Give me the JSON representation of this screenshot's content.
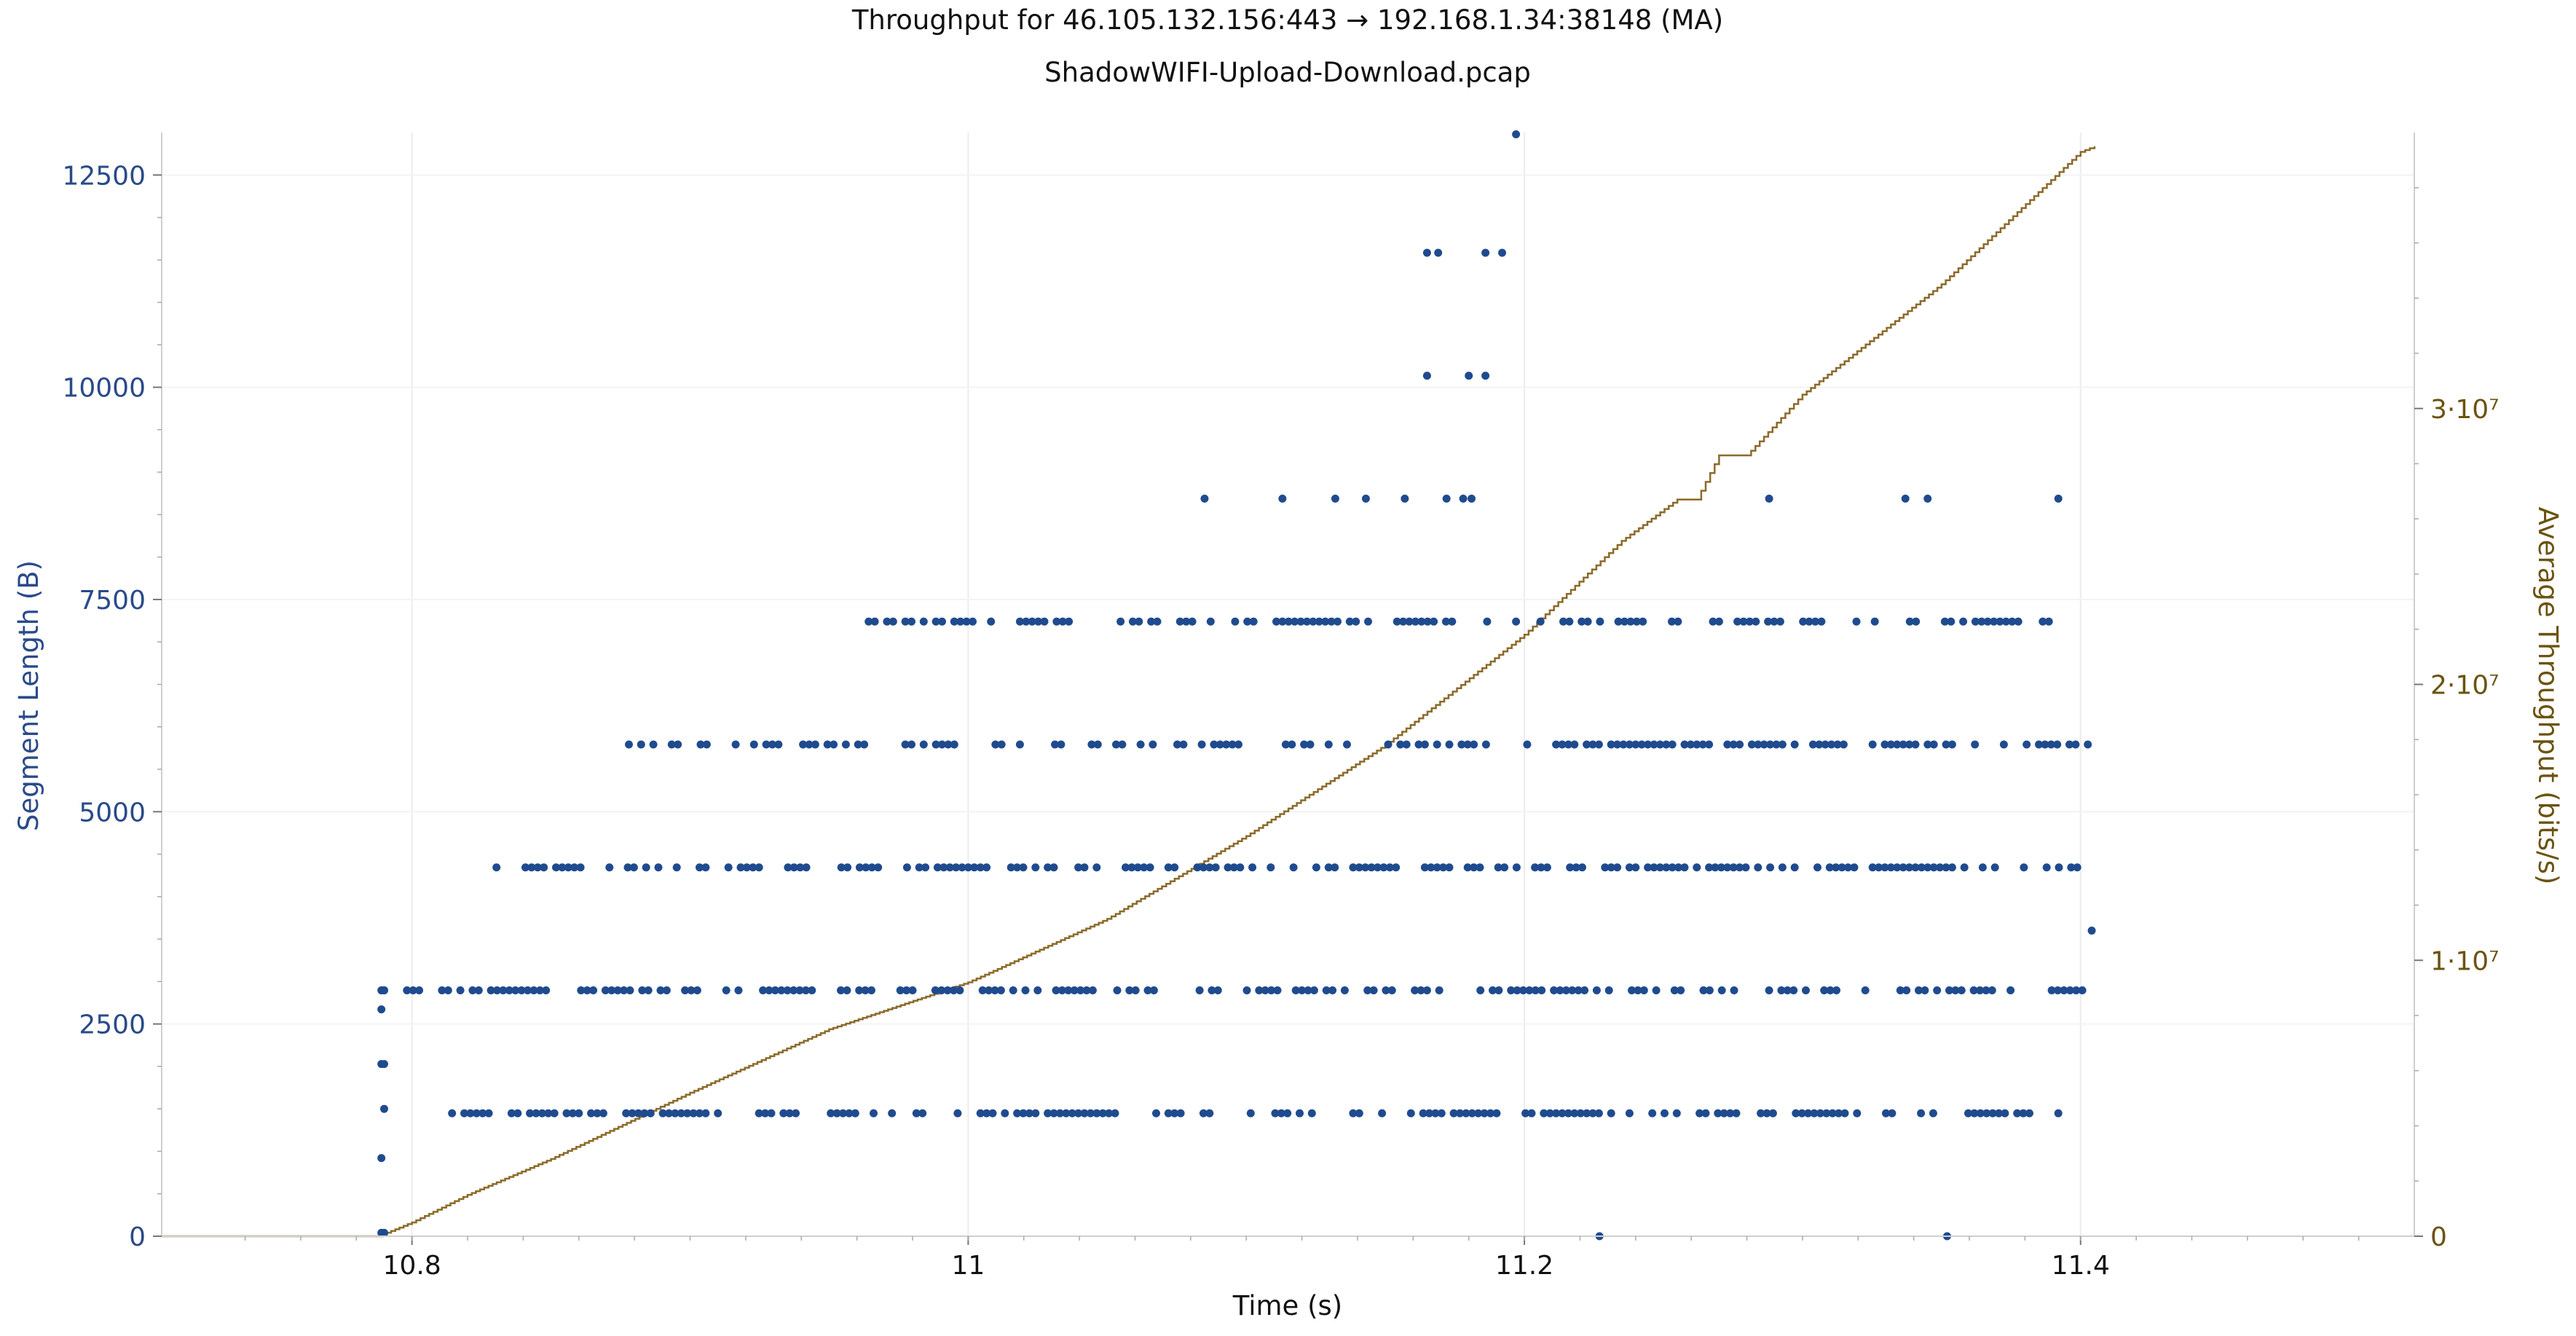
{
  "chart_data": {
    "type": "scatter",
    "title": "Throughput for 46.105.132.156:443 → 192.168.1.34:38148 (MA)",
    "subtitle": "ShadowWIFI-Upload-Download.pcap",
    "xlabel": "Time (s)",
    "ylabel_left": "Segment Length (B)",
    "ylabel_right": "Average Throughput (bits/s)",
    "xlim": [
      10.71,
      11.52
    ],
    "ylim_left": [
      0,
      13000
    ],
    "ylim_right": [
      0,
      40000000
    ],
    "x_ticks": [
      10.8,
      11,
      11.2,
      11.4
    ],
    "x_tick_labels": [
      "10.8",
      "11",
      "11.2",
      "11.4"
    ],
    "y_left_ticks": [
      0,
      2500,
      5000,
      7500,
      10000,
      12500
    ],
    "y_left_tick_labels": [
      "0",
      "2500",
      "5000",
      "7500",
      "10000",
      "12500"
    ],
    "y_right_ticks": [
      0,
      10000000,
      20000000,
      30000000
    ],
    "y_right_tick_labels": [
      "0",
      "1·10⁷",
      "2·10⁷",
      "3·10⁷"
    ],
    "colors": {
      "segments": "#1f4b8e",
      "throughput": "#8b6a2a",
      "axis_left": "#2a4a8a",
      "axis_right": "#6b5310",
      "grid": "#ececec"
    },
    "series": [
      {
        "name": "Segment Length",
        "axis": "left",
        "marker": "dot",
        "levels": [
          {
            "y": 1448,
            "x_range": [
              10.81,
              11.405
            ]
          },
          {
            "y": 2896,
            "x_range": [
              10.79,
              11.405
            ]
          },
          {
            "y": 4344,
            "x_range": [
              10.826,
              11.405
            ]
          },
          {
            "y": 5792,
            "x_range": [
              10.878,
              11.405
            ]
          },
          {
            "y": 7240,
            "x_range": [
              10.962,
              11.395
            ]
          }
        ],
        "points": [
          {
            "x": 10.789,
            "y": 2896
          },
          {
            "x": 10.79,
            "y": 2896
          },
          {
            "x": 10.789,
            "y": 2672
          },
          {
            "x": 10.789,
            "y": 2028
          },
          {
            "x": 10.79,
            "y": 2028
          },
          {
            "x": 10.79,
            "y": 1500
          },
          {
            "x": 10.789,
            "y": 920
          },
          {
            "x": 10.789,
            "y": 40
          },
          {
            "x": 10.79,
            "y": 40
          },
          {
            "x": 11.085,
            "y": 8688
          },
          {
            "x": 11.113,
            "y": 8688
          },
          {
            "x": 11.132,
            "y": 8688
          },
          {
            "x": 11.143,
            "y": 8688
          },
          {
            "x": 11.157,
            "y": 8688
          },
          {
            "x": 11.172,
            "y": 8688
          },
          {
            "x": 11.178,
            "y": 8688
          },
          {
            "x": 11.181,
            "y": 8688
          },
          {
            "x": 11.288,
            "y": 8688
          },
          {
            "x": 11.337,
            "y": 8688
          },
          {
            "x": 11.345,
            "y": 8688
          },
          {
            "x": 11.392,
            "y": 8688
          },
          {
            "x": 11.165,
            "y": 10136
          },
          {
            "x": 11.18,
            "y": 10136
          },
          {
            "x": 11.186,
            "y": 10136
          },
          {
            "x": 11.165,
            "y": 11584
          },
          {
            "x": 11.169,
            "y": 11584
          },
          {
            "x": 11.186,
            "y": 11584
          },
          {
            "x": 11.192,
            "y": 11584
          },
          {
            "x": 11.197,
            "y": 12980
          },
          {
            "x": 11.227,
            "y": 0
          },
          {
            "x": 11.352,
            "y": 0
          },
          {
            "x": 11.404,
            "y": 3600
          }
        ]
      },
      {
        "name": "Average Throughput",
        "axis": "right",
        "style": "step-line",
        "points": [
          {
            "x": 10.71,
            "y": 0
          },
          {
            "x": 10.788,
            "y": 0
          },
          {
            "x": 10.8,
            "y": 500000
          },
          {
            "x": 10.82,
            "y": 1500000
          },
          {
            "x": 10.85,
            "y": 2800000
          },
          {
            "x": 10.9,
            "y": 5200000
          },
          {
            "x": 10.95,
            "y": 7500000
          },
          {
            "x": 11.0,
            "y": 9200000
          },
          {
            "x": 11.05,
            "y": 11500000
          },
          {
            "x": 11.1,
            "y": 14500000
          },
          {
            "x": 11.15,
            "y": 17800000
          },
          {
            "x": 11.2,
            "y": 21800000
          },
          {
            "x": 11.235,
            "y": 25200000
          },
          {
            "x": 11.255,
            "y": 26700000
          },
          {
            "x": 11.262,
            "y": 26700000
          },
          {
            "x": 11.27,
            "y": 28300000
          },
          {
            "x": 11.28,
            "y": 28300000
          },
          {
            "x": 11.3,
            "y": 30500000
          },
          {
            "x": 11.35,
            "y": 34500000
          },
          {
            "x": 11.4,
            "y": 39300000
          },
          {
            "x": 11.405,
            "y": 39500000
          }
        ]
      }
    ]
  }
}
